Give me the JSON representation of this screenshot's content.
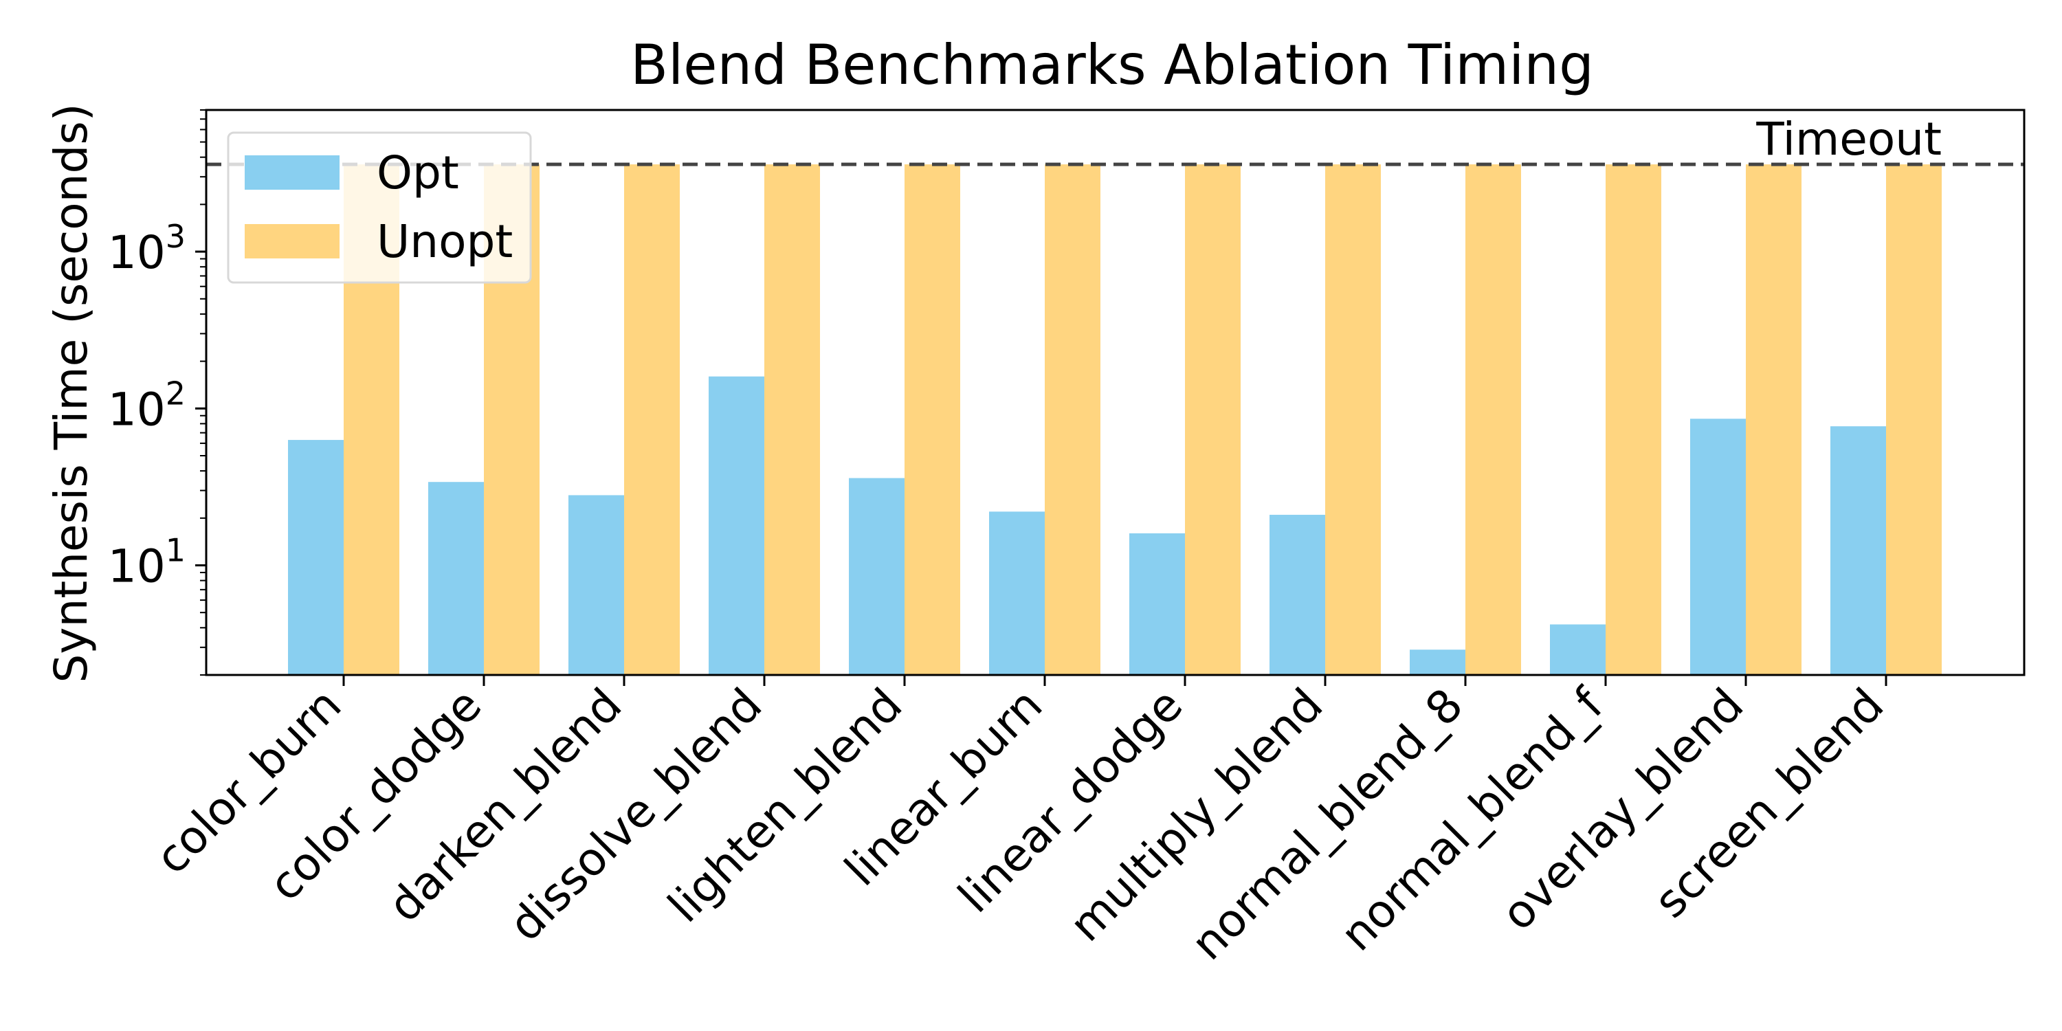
{
  "chart_data": {
    "type": "bar",
    "title": "Blend Benchmarks Ablation Timing",
    "ylabel": "Synthesis Time (seconds)",
    "xlabel": "",
    "yscale": "log",
    "ylim": [
      2,
      8000
    ],
    "yticks": [
      {
        "value": 10,
        "base": "10",
        "exp": "1"
      },
      {
        "value": 100,
        "base": "10",
        "exp": "2"
      },
      {
        "value": 1000,
        "base": "10",
        "exp": "3"
      }
    ],
    "categories": [
      "color_burn",
      "color_dodge",
      "darken_blend",
      "dissolve_blend",
      "lighten_blend",
      "linear_burn",
      "linear_dodge",
      "multiply_blend",
      "normal_blend_8",
      "normal_blend_f",
      "overlay_blend",
      "screen_blend"
    ],
    "series": [
      {
        "name": "Opt",
        "color": "#89CFF0",
        "values": [
          63,
          34,
          28,
          160,
          36,
          22,
          16,
          21,
          2.9,
          4.2,
          86,
          77
        ]
      },
      {
        "name": "Unopt",
        "color": "#FFD580",
        "values": [
          3600,
          3600,
          3600,
          3600,
          3600,
          3600,
          3600,
          3600,
          3600,
          3600,
          3600,
          3600
        ]
      }
    ],
    "reference_line": {
      "value": 3600,
      "label": "Timeout",
      "style": "dashed",
      "color": "#444444"
    },
    "legend": {
      "placement": "top-left"
    },
    "grid": false
  }
}
